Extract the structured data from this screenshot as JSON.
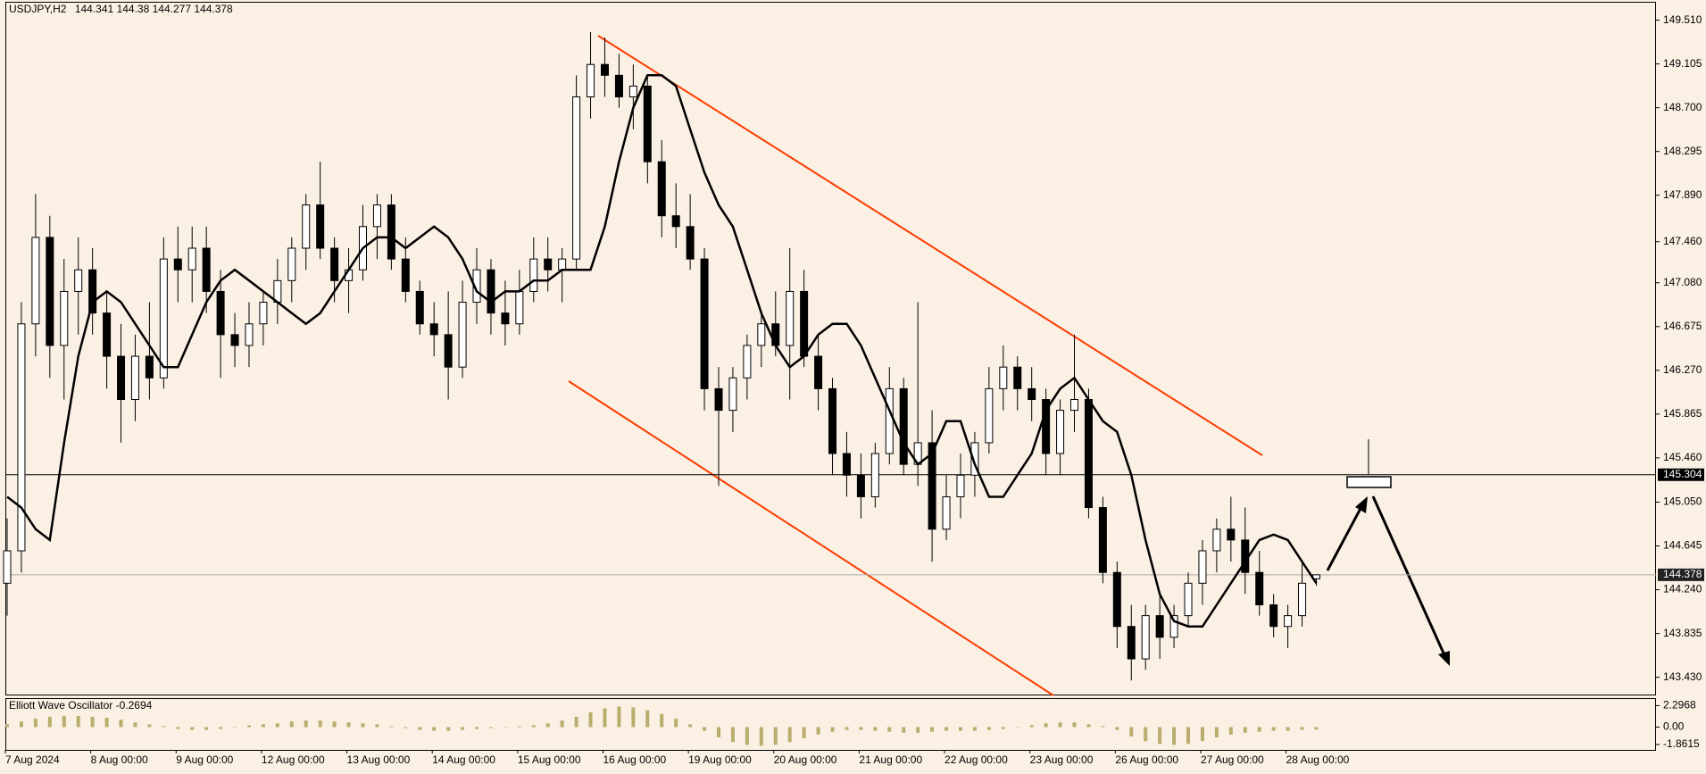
{
  "chart_data": {
    "type": "candlestick",
    "symbol": "USDJPY,H2",
    "categories": [
      "7 Aug 2024",
      null,
      null,
      null,
      null,
      null,
      "8 Aug 00:00",
      null,
      null,
      null,
      null,
      null,
      "9 Aug 00:00",
      null,
      null,
      null,
      null,
      null,
      "12 Aug 00:00",
      null,
      null,
      null,
      null,
      null,
      "13 Aug 00:00",
      null,
      null,
      null,
      null,
      null,
      "14 Aug 00:00",
      null,
      null,
      null,
      null,
      null,
      "15 Aug 00:00",
      null,
      null,
      null,
      null,
      null,
      "16 Aug 00:00",
      null,
      null,
      null,
      null,
      null,
      "19 Aug 00:00",
      null,
      null,
      null,
      null,
      null,
      "20 Aug 00:00",
      null,
      null,
      null,
      null,
      null,
      "21 Aug 00:00",
      null,
      null,
      null,
      null,
      null,
      "22 Aug 00:00",
      null,
      null,
      null,
      null,
      null,
      "23 Aug 00:00",
      null,
      null,
      null,
      null,
      null,
      "26 Aug 00:00",
      null,
      null,
      null,
      null,
      null,
      "27 Aug 00:00",
      null,
      null,
      null,
      null,
      null,
      "28 Aug 00:00",
      null,
      null
    ],
    "open": [
      144.3,
      144.6,
      146.7,
      147.5,
      146.5,
      147.0,
      147.2,
      146.8,
      146.4,
      146.0,
      146.4,
      146.2,
      147.3,
      147.2,
      147.4,
      147.0,
      146.6,
      146.5,
      146.7,
      146.9,
      147.1,
      147.4,
      147.8,
      147.4,
      147.1,
      147.2,
      147.6,
      147.8,
      147.3,
      147.0,
      146.7,
      146.6,
      146.3,
      146.9,
      147.2,
      146.8,
      146.7,
      147.0,
      147.3,
      147.2,
      147.3,
      148.8,
      149.1,
      149.0,
      148.8,
      148.9,
      148.2,
      147.7,
      147.6,
      147.3,
      146.1,
      145.9,
      146.2,
      146.5,
      146.7,
      146.5,
      147.0,
      146.4,
      146.1,
      145.5,
      145.3,
      145.1,
      145.5,
      146.1,
      145.4,
      145.6,
      144.8,
      145.1,
      145.3,
      145.6,
      146.1,
      146.3,
      146.1,
      146.0,
      145.5,
      145.9,
      146.0,
      145.0,
      144.4,
      143.9,
      143.6,
      144.0,
      143.8,
      144.0,
      144.3,
      144.6,
      144.8,
      144.7,
      144.4,
      144.1,
      143.9,
      144.0,
      144.341
    ],
    "high": [
      144.9,
      146.9,
      147.9,
      147.7,
      147.3,
      147.5,
      147.4,
      147.0,
      146.7,
      146.6,
      146.9,
      147.5,
      147.6,
      147.6,
      147.6,
      147.2,
      146.8,
      146.9,
      147.0,
      147.3,
      147.5,
      147.9,
      148.2,
      147.5,
      147.4,
      147.8,
      147.9,
      147.9,
      147.5,
      147.1,
      146.9,
      147.0,
      147.1,
      147.4,
      147.3,
      147.1,
      147.2,
      147.5,
      147.5,
      147.4,
      149.0,
      149.4,
      149.35,
      149.2,
      149.1,
      149.0,
      148.4,
      148.0,
      147.9,
      147.4,
      146.3,
      146.3,
      146.6,
      146.8,
      147.0,
      147.4,
      147.2,
      146.6,
      146.2,
      145.7,
      145.5,
      145.6,
      146.3,
      146.2,
      146.9,
      145.9,
      145.3,
      145.5,
      145.7,
      146.3,
      146.5,
      146.4,
      146.3,
      146.1,
      146.0,
      146.6,
      146.1,
      145.1,
      144.5,
      144.1,
      144.1,
      144.2,
      144.1,
      144.4,
      144.7,
      144.9,
      145.1,
      145.0,
      144.6,
      144.2,
      144.1,
      144.5,
      144.38
    ],
    "low": [
      144.0,
      144.4,
      146.4,
      146.2,
      146.0,
      146.6,
      146.6,
      146.1,
      145.6,
      145.8,
      146.0,
      146.1,
      146.9,
      146.9,
      146.8,
      146.2,
      146.3,
      146.3,
      146.5,
      146.7,
      146.9,
      147.2,
      147.3,
      146.9,
      146.8,
      147.1,
      147.3,
      147.2,
      146.9,
      146.6,
      146.4,
      146.0,
      146.2,
      146.7,
      146.6,
      146.5,
      146.6,
      146.9,
      147.0,
      146.9,
      147.2,
      148.6,
      148.8,
      148.7,
      148.5,
      148.0,
      147.5,
      147.4,
      147.2,
      145.9,
      145.2,
      145.7,
      146.0,
      146.3,
      146.4,
      146.0,
      146.3,
      145.9,
      145.3,
      145.1,
      144.9,
      145.0,
      145.4,
      145.3,
      145.2,
      144.5,
      144.7,
      144.9,
      145.1,
      145.5,
      145.9,
      145.9,
      145.8,
      145.3,
      145.3,
      145.7,
      144.9,
      144.3,
      143.7,
      143.4,
      143.5,
      143.6,
      143.7,
      143.9,
      144.1,
      144.4,
      144.5,
      144.2,
      144.0,
      143.8,
      143.7,
      143.9,
      144.277
    ],
    "close": [
      144.6,
      146.7,
      147.5,
      146.5,
      147.0,
      147.2,
      146.8,
      146.4,
      146.0,
      146.4,
      146.2,
      147.3,
      147.2,
      147.4,
      147.0,
      146.6,
      146.5,
      146.7,
      146.9,
      147.1,
      147.4,
      147.8,
      147.4,
      147.1,
      147.2,
      147.6,
      147.8,
      147.3,
      147.0,
      146.7,
      146.6,
      146.3,
      146.9,
      147.2,
      146.8,
      146.7,
      147.0,
      147.3,
      147.2,
      147.3,
      148.8,
      149.1,
      149.0,
      148.8,
      148.9,
      148.2,
      147.7,
      147.6,
      147.3,
      146.1,
      145.9,
      146.2,
      146.5,
      146.7,
      146.5,
      147.0,
      146.4,
      146.1,
      145.5,
      145.3,
      145.1,
      145.5,
      146.1,
      145.4,
      145.6,
      144.8,
      145.1,
      145.3,
      145.6,
      146.1,
      146.3,
      146.1,
      146.0,
      145.5,
      145.9,
      146.0,
      145.0,
      144.4,
      143.9,
      143.6,
      144.0,
      143.8,
      144.0,
      144.3,
      144.6,
      144.8,
      144.7,
      144.4,
      144.1,
      143.9,
      144.0,
      144.3,
      144.378
    ],
    "up_color": "#ffffff",
    "down_color": "#000000",
    "ylim": [
      143.27,
      149.68
    ],
    "yticks": [
      {
        "value": 149.51,
        "label": "149.510"
      },
      149.105,
      {
        "value": 148.7,
        "label": "148.700"
      },
      148.295,
      {
        "value": 147.89,
        "label": "147.890"
      },
      {
        "value": 147.46,
        "label": "147.460"
      },
      {
        "value": 147.08,
        "label": "147.080"
      },
      146.675,
      {
        "value": 146.27,
        "label": "146.270"
      },
      145.865,
      {
        "value": 145.46,
        "label": "145.460"
      },
      {
        "value": 145.05,
        "label": "145.050"
      },
      144.645,
      {
        "value": 144.24,
        "label": "144.240"
      },
      143.835,
      {
        "value": 143.43,
        "label": "143.430"
      }
    ],
    "hline": 145.304,
    "ma": {
      "color": "#000000",
      "values": [
        145.1,
        145.0,
        144.8,
        144.7,
        145.6,
        146.4,
        146.9,
        147.0,
        146.9,
        146.7,
        146.5,
        146.3,
        146.3,
        146.6,
        146.9,
        147.1,
        147.2,
        147.1,
        147.0,
        146.9,
        146.8,
        146.7,
        146.8,
        147.0,
        147.2,
        147.4,
        147.5,
        147.5,
        147.4,
        147.5,
        147.6,
        147.5,
        147.3,
        147.0,
        146.9,
        147.0,
        147.0,
        147.1,
        147.1,
        147.2,
        147.2,
        147.2,
        147.6,
        148.2,
        148.7,
        149.0,
        149.0,
        148.9,
        148.5,
        148.1,
        147.8,
        147.6,
        147.2,
        146.8,
        146.5,
        146.3,
        146.4,
        146.6,
        146.7,
        146.7,
        146.5,
        146.2,
        145.9,
        145.6,
        145.4,
        145.5,
        145.8,
        145.8,
        145.4,
        145.1,
        145.1,
        145.3,
        145.5,
        145.9,
        146.1,
        146.2,
        146.0,
        145.8,
        145.7,
        145.3,
        144.7,
        144.2,
        143.95,
        143.9,
        143.9,
        144.1,
        144.3,
        144.5,
        144.7,
        144.75,
        144.7,
        144.5,
        144.3
      ]
    },
    "oscillator": {
      "name": "Elliott Wave Oscillator",
      "color": "#b9ad6e",
      "values": [
        0.3,
        0.6,
        0.9,
        1.1,
        1.2,
        1.2,
        1.1,
        1.0,
        0.8,
        0.5,
        0.3,
        0.1,
        -0.2,
        -0.3,
        -0.3,
        -0.2,
        0,
        0.2,
        0.3,
        0.4,
        0.6,
        0.7,
        0.7,
        0.6,
        0.5,
        0.4,
        0.3,
        0.1,
        -0.1,
        -0.3,
        -0.4,
        -0.4,
        -0.3,
        -0.2,
        -0.1,
        0,
        0.1,
        0.2,
        0.4,
        0.7,
        1.1,
        1.6,
        2.0,
        2.2,
        2.1,
        1.8,
        1.4,
        0.9,
        0.3,
        -0.4,
        -1.1,
        -1.6,
        -1.9,
        -2.0,
        -1.9,
        -1.6,
        -1.2,
        -0.8,
        -0.5,
        -0.3,
        -0.3,
        -0.4,
        -0.5,
        -0.6,
        -0.6,
        -0.5,
        -0.4,
        -0.4,
        -0.4,
        -0.3,
        -0.2,
        0,
        0.2,
        0.4,
        0.5,
        0.5,
        0.3,
        0.1,
        -0.3,
        -1.0,
        -1.5,
        -1.8,
        -1.9,
        -1.8,
        -1.5,
        -1.1,
        -0.8,
        -0.6,
        -0.5,
        -0.4,
        -0.4,
        -0.3,
        -0.2694
      ],
      "ylim": [
        -2.44,
        3.1
      ],
      "yticks": [
        2.2968,
        {
          "value": 0,
          "label": "0.00"
        },
        -1.8615
      ]
    }
  }
}
